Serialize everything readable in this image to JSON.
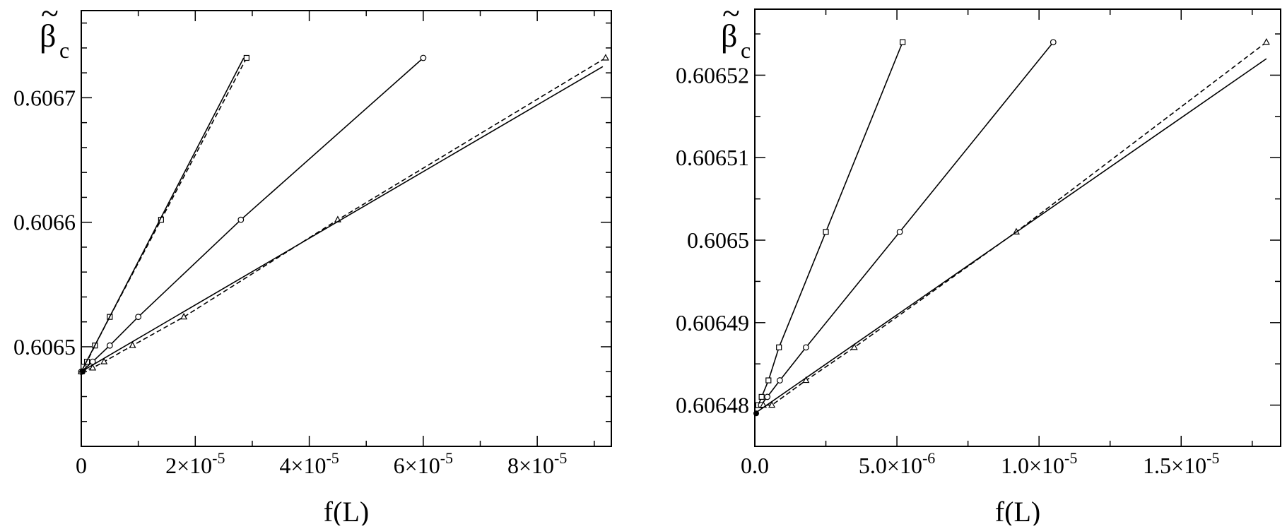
{
  "chart_data": [
    {
      "type": "line",
      "title": "",
      "xlabel": "f(L)",
      "ylabel": "β",
      "ylabel_accent": "~",
      "ylabel_sub": "c",
      "xlim": [
        0,
        9.3e-05
      ],
      "ylim": [
        0.60642,
        0.60677
      ],
      "x_ticks": [
        {
          "value": 0,
          "label": "0"
        },
        {
          "value": 2e-05,
          "label": "2×10",
          "exp": "-5"
        },
        {
          "value": 4e-05,
          "label": "4×10",
          "exp": "-5"
        },
        {
          "value": 6e-05,
          "label": "6×10",
          "exp": "-5"
        },
        {
          "value": 8e-05,
          "label": "8×10",
          "exp": "-5"
        }
      ],
      "x_minor_step": 1e-05,
      "y_ticks": [
        {
          "value": 0.6065,
          "label": "0.6065"
        },
        {
          "value": 0.6066,
          "label": "0.6066"
        },
        {
          "value": 0.6067,
          "label": "0.6067"
        }
      ],
      "y_minor_step": 2e-05,
      "grid": false,
      "series": [
        {
          "marker": "square",
          "dash": "dashed",
          "points": [
            [
              2.9e-05,
              0.606732
            ],
            [
              1.4e-05,
              0.606602
            ],
            [
              5e-06,
              0.606524
            ],
            [
              2.4e-06,
              0.606501
            ],
            [
              1e-06,
              0.606488
            ],
            [
              4e-07,
              0.606484
            ]
          ]
        },
        {
          "marker": "none",
          "dash": "solid",
          "points": [
            [
              0,
              0.60648
            ],
            [
              2.85e-05,
              0.606732
            ]
          ]
        },
        {
          "marker": "circle",
          "dash": "solid",
          "points": [
            [
              0,
              0.60648
            ],
            [
              2e-06,
              0.606488
            ],
            [
              5e-06,
              0.606501
            ],
            [
              1e-05,
              0.606524
            ],
            [
              2.8e-05,
              0.606602
            ],
            [
              6e-05,
              0.606732
            ]
          ]
        },
        {
          "marker": "triangle",
          "dash": "dashed",
          "points": [
            [
              0,
              0.60648
            ],
            [
              2e-06,
              0.606483
            ],
            [
              4e-06,
              0.606488
            ],
            [
              9e-06,
              0.606501
            ],
            [
              1.8e-05,
              0.606524
            ],
            [
              4.5e-05,
              0.606602
            ],
            [
              9.2e-05,
              0.606732
            ]
          ]
        },
        {
          "marker": "none",
          "dash": "solid",
          "points": [
            [
              0,
              0.60648
            ],
            [
              9.15e-05,
              0.606725
            ]
          ]
        }
      ]
    },
    {
      "type": "line",
      "title": "",
      "xlabel": "f(L)",
      "ylabel": "β",
      "ylabel_accent": "~",
      "ylabel_sub": "c",
      "xlim": [
        0,
        1.85e-05
      ],
      "ylim": [
        0.606475,
        0.606528
      ],
      "x_ticks": [
        {
          "value": 0,
          "label": "0.0"
        },
        {
          "value": 5e-06,
          "label": "5.0×10",
          "exp": "-6"
        },
        {
          "value": 1e-05,
          "label": "1.0×10",
          "exp": "-5"
        },
        {
          "value": 1.5e-05,
          "label": "1.5×10",
          "exp": "-5"
        }
      ],
      "x_minor_step": 2.5e-06,
      "y_ticks": [
        {
          "value": 0.60648,
          "label": "0.60648"
        },
        {
          "value": 0.60649,
          "label": "0.60649"
        },
        {
          "value": 0.6065,
          "label": "0.6065"
        },
        {
          "value": 0.60651,
          "label": "0.60651"
        },
        {
          "value": 0.60652,
          "label": "0.60652"
        }
      ],
      "y_minor_step": 5e-06,
      "grid": false,
      "series": [
        {
          "marker": "square",
          "dash": "solid",
          "points": [
            [
              5.2e-06,
              0.606524
            ],
            [
              2.5e-06,
              0.606501
            ],
            [
              8.5e-07,
              0.606487
            ],
            [
              4.8e-07,
              0.606483
            ],
            [
              2.4e-07,
              0.606481
            ],
            [
              1.2e-07,
              0.60648
            ]
          ]
        },
        {
          "marker": "circle",
          "dash": "solid",
          "points": [
            [
              1.05e-05,
              0.606524
            ],
            [
              5.1e-06,
              0.606501
            ],
            [
              1.8e-06,
              0.606487
            ],
            [
              8.8e-07,
              0.606483
            ],
            [
              4.4e-07,
              0.606481
            ],
            [
              2.2e-07,
              0.60648
            ]
          ]
        },
        {
          "marker": "triangle",
          "dash": "dashed",
          "points": [
            [
              1.8e-05,
              0.606524
            ],
            [
              9.2e-06,
              0.606501
            ],
            [
              3.5e-06,
              0.606487
            ],
            [
              1.8e-06,
              0.606483
            ],
            [
              6e-07,
              0.60648
            ],
            [
              3e-07,
              0.60648
            ]
          ]
        },
        {
          "marker": "none",
          "dash": "solid",
          "points": [
            [
              0,
              0.606479
            ],
            [
              1.8e-05,
              0.606522
            ]
          ]
        }
      ]
    }
  ]
}
